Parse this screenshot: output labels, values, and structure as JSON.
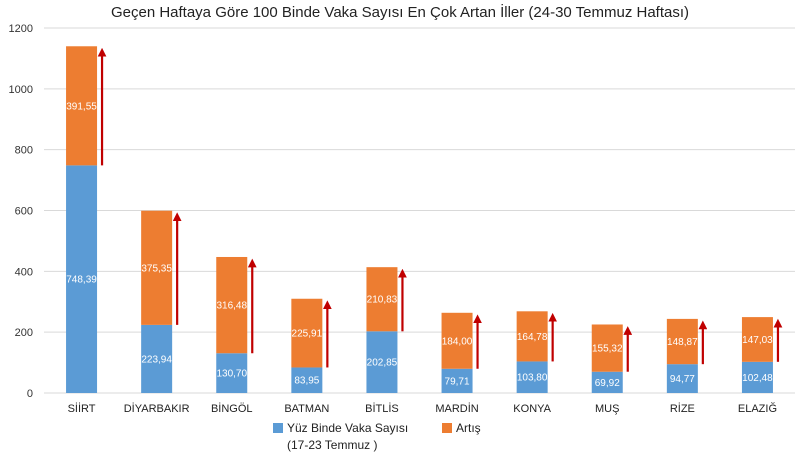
{
  "chart_data": {
    "type": "bar",
    "stacked": true,
    "title": "Geçen Haftaya Göre 100 Binde Vaka Sayısı En Çok Artan İller (24-30 Temmuz Haftası)",
    "categories": [
      "SİİRT",
      "DİYARBAKIR",
      "BİNGÖL",
      "BATMAN",
      "BİTLİS",
      "MARDİN",
      "KONYA",
      "MUŞ",
      "RİZE",
      "ELAZIĞ"
    ],
    "series": [
      {
        "name": "Yüz Binde Vaka Sayısı",
        "name_line2": "(17-23 Temmuz )",
        "color": "#5b9bd5",
        "values": [
          748.39,
          223.94,
          130.7,
          83.95,
          202.85,
          79.71,
          103.8,
          69.92,
          94.77,
          102.48
        ],
        "labels": [
          "748,39",
          "223,94",
          "130,70",
          "83,95",
          "202,85",
          "79,71",
          "103,80",
          "69,92",
          "94,77",
          "102,48"
        ]
      },
      {
        "name": "Artış",
        "color": "#ed7d31",
        "values": [
          391.55,
          375.35,
          316.48,
          225.91,
          210.83,
          184.0,
          164.78,
          155.32,
          148.87,
          147.03
        ],
        "labels": [
          "391,55",
          "375,35",
          "316,48",
          "225,91",
          "210,83",
          "184,00",
          "164,78",
          "155,32",
          "148,87",
          "147,03"
        ]
      }
    ],
    "yticks": [
      "0",
      "200",
      "400",
      "600",
      "800",
      "1000",
      "1200"
    ],
    "ylim": [
      0,
      1200
    ],
    "grid": true,
    "legend_position": "bottom",
    "arrow_color": "#c00000",
    "grid_color": "#d9d9d9"
  }
}
